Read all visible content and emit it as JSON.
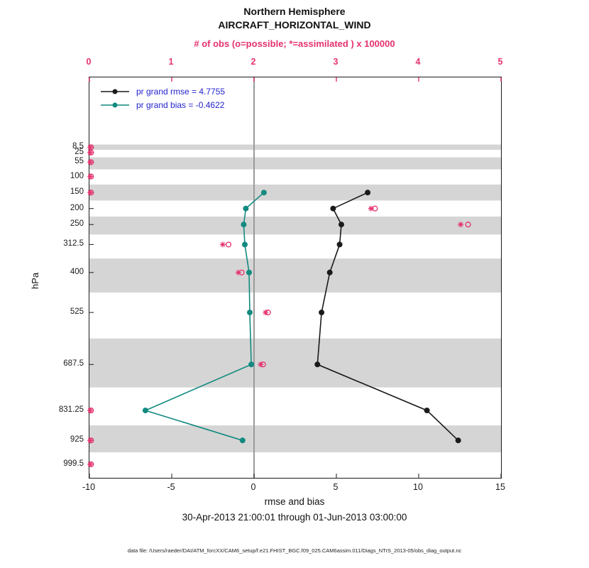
{
  "figure": {
    "title_line1": "Northern Hemisphere",
    "title_line2": "AIRCRAFT_HORIZONTAL_WIND",
    "obs_axis_label": "# of obs (o=possible; *=assimilated ) x 100000",
    "xlabel": "rmse and bias",
    "ylabel": "hPa",
    "subtitle": "30-Apr-2013 21:00:01 through 01-Jun-2013 03:00:00",
    "footer": "data file: /Users/raeder/DAI/ATM_forcXX/CAM6_setup/f.e21.FHIST_BGC.f09_025.CAM6assim.011/Diags_NTrS_2013-05/obs_diag_output.nc"
  },
  "legend": {
    "rmse_label": "pr grand rmse = 4.7755",
    "bias_label": "pr grand bias = -0.4622"
  },
  "colors": {
    "rmse_line": "#1a1a1a",
    "bias_line": "#128a80",
    "obs_markers": "#e5326e",
    "legend_text": "#2323cc",
    "band_gray": "#d5d5d5",
    "zero_line": "#9a9a9a",
    "axis": "#1a1a1a"
  },
  "chart_data": {
    "type": "line",
    "title": "Northern Hemisphere AIRCRAFT_HORIZONTAL_WIND",
    "x_bottom": {
      "label": "rmse and bias",
      "range": [
        -10,
        15
      ],
      "ticks": [
        -10,
        -5,
        0,
        5,
        10,
        15
      ]
    },
    "x_top": {
      "label": "# of obs (o=possible; *=assimilated ) x 100000",
      "range": [
        0,
        5
      ],
      "ticks": [
        0,
        1,
        2,
        3,
        4,
        5
      ]
    },
    "y": {
      "label": "hPa",
      "range": [
        -210,
        1042
      ],
      "ticks": [
        {
          "label": "8.5",
          "value": 8.5
        },
        {
          "label": "25",
          "value": 25
        },
        {
          "label": "55",
          "value": 55
        },
        {
          "label": "100",
          "value": 100
        },
        {
          "label": "150",
          "value": 150
        },
        {
          "label": "200",
          "value": 200
        },
        {
          "label": "250",
          "value": 250
        },
        {
          "label": "312.5",
          "value": 312.5
        },
        {
          "label": "400",
          "value": 400
        },
        {
          "label": "525",
          "value": 525
        },
        {
          "label": "687.5",
          "value": 687.5
        },
        {
          "label": "831.25",
          "value": 831.25
        },
        {
          "label": "925",
          "value": 925
        },
        {
          "label": "999.5",
          "value": 999.5
        }
      ]
    },
    "series": [
      {
        "name": "pr grand rmse",
        "grand_value": 4.7755,
        "color_key": "rmse_line",
        "levels": [
          150,
          200,
          250,
          312.5,
          400,
          525,
          687.5,
          831.25,
          925
        ],
        "values": [
          6.9,
          4.8,
          5.3,
          5.2,
          4.6,
          4.1,
          3.85,
          10.5,
          12.4
        ]
      },
      {
        "name": "pr grand bias",
        "grand_value": -0.4622,
        "color_key": "bias_line",
        "levels": [
          150,
          200,
          250,
          312.5,
          400,
          525,
          687.5,
          831.25,
          925
        ],
        "values": [
          0.6,
          -0.5,
          -0.63,
          -0.56,
          -0.3,
          -0.26,
          -0.17,
          -6.6,
          -0.7
        ]
      }
    ],
    "obs_counts_x100000": {
      "levels": [
        8.5,
        25,
        55,
        100,
        150,
        200,
        250,
        312.5,
        400,
        525,
        687.5,
        831.25,
        925,
        999.5
      ],
      "possible": [
        0.02,
        0.02,
        0.02,
        0.02,
        0.02,
        3.47,
        4.6,
        1.69,
        1.85,
        2.17,
        2.11,
        0.02,
        0.02,
        0.02
      ],
      "assimilated": [
        0.01,
        0.01,
        0.01,
        0.01,
        0.01,
        3.42,
        4.51,
        1.62,
        1.81,
        2.14,
        2.08,
        0.01,
        0.01,
        0.01
      ]
    },
    "shaded_bands": [
      {
        "top": 0,
        "bottom": 16.75
      },
      {
        "top": 40,
        "bottom": 77.5
      },
      {
        "top": 125,
        "bottom": 175
      },
      {
        "top": 225,
        "bottom": 281.25
      },
      {
        "top": 356.25,
        "bottom": 462.5
      },
      {
        "top": 606.25,
        "bottom": 759.375
      },
      {
        "top": 878.125,
        "bottom": 962.25
      }
    ]
  }
}
